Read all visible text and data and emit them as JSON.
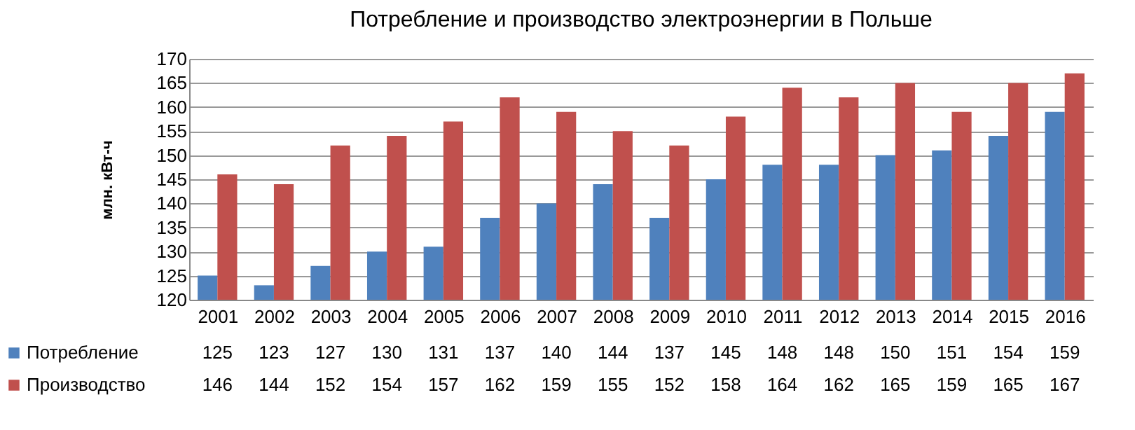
{
  "chart_data": {
    "type": "bar",
    "title": "Потребление и производство электроэнергии в Польше",
    "ylabel": "млн. кВт-ч",
    "categories": [
      "2001",
      "2002",
      "2003",
      "2004",
      "2005",
      "2006",
      "2007",
      "2008",
      "2009",
      "2010",
      "2011",
      "2012",
      "2013",
      "2014",
      "2015",
      "2016"
    ],
    "series": [
      {
        "name": "Потребление",
        "color": "#4f81bd",
        "values": [
          125,
          123,
          127,
          130,
          131,
          137,
          140,
          144,
          137,
          145,
          148,
          148,
          150,
          151,
          154,
          159
        ]
      },
      {
        "name": "Производство",
        "color": "#c0504d",
        "values": [
          146,
          144,
          152,
          154,
          157,
          162,
          159,
          155,
          152,
          158,
          164,
          162,
          165,
          159,
          165,
          167
        ]
      }
    ],
    "ylim": [
      120,
      170
    ],
    "yticks": [
      120,
      125,
      130,
      135,
      140,
      145,
      150,
      155,
      160,
      165,
      170
    ],
    "grid": "y",
    "legend": "bottom",
    "data_labels": true
  }
}
